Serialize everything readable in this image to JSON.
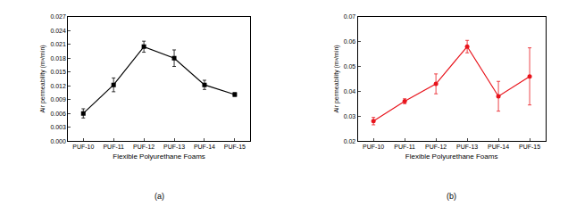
{
  "chart_data": [
    {
      "type": "line",
      "annotations": [
        "(a)"
      ],
      "x_label": "Flexible Polyurethane Foams",
      "y_label": "Air permeability (m³/min)",
      "categories": [
        "PUF-10",
        "PUF-11",
        "PUF-12",
        "PUF-13",
        "PUF-14",
        "PUF-15"
      ],
      "series": [
        {
          "color": "#000000",
          "marker": "square",
          "line_style": "solid",
          "values": [
            0.006,
            0.0122,
            0.0205,
            0.018,
            0.0122,
            0.0101
          ],
          "errors": [
            0.001,
            0.0015,
            0.0012,
            0.0018,
            0.001,
            0.0004
          ]
        }
      ],
      "ylim": [
        0,
        0.027
      ],
      "yticks": [
        {
          "value": 0,
          "label": "0.000"
        },
        0.003,
        0.006,
        0.009,
        0.012,
        0.015,
        0.018,
        0.021,
        0.024,
        0.027
      ],
      "grid": false
    },
    {
      "type": "line",
      "annotations": [
        "(b)"
      ],
      "x_label": "Flexible Polyurethane Foams",
      "y_label": "Air permeability (m³/min)",
      "categories": [
        "PUF-10",
        "PUF-11",
        "PUF-12",
        "PUF-13",
        "PUF-14",
        "PUF-15"
      ],
      "series": [
        {
          "color": "#e8141c",
          "marker": "circle",
          "line_style": "solid",
          "values": [
            0.028,
            0.036,
            0.043,
            0.058,
            0.038,
            0.046
          ],
          "errors": [
            0.0015,
            0.001,
            0.004,
            0.0025,
            0.006,
            0.0115
          ]
        }
      ],
      "ylim": [
        0.02,
        0.07
      ],
      "yticks": [
        0.02,
        0.03,
        0.04,
        0.05,
        0.06,
        0.07
      ],
      "grid": false
    }
  ]
}
